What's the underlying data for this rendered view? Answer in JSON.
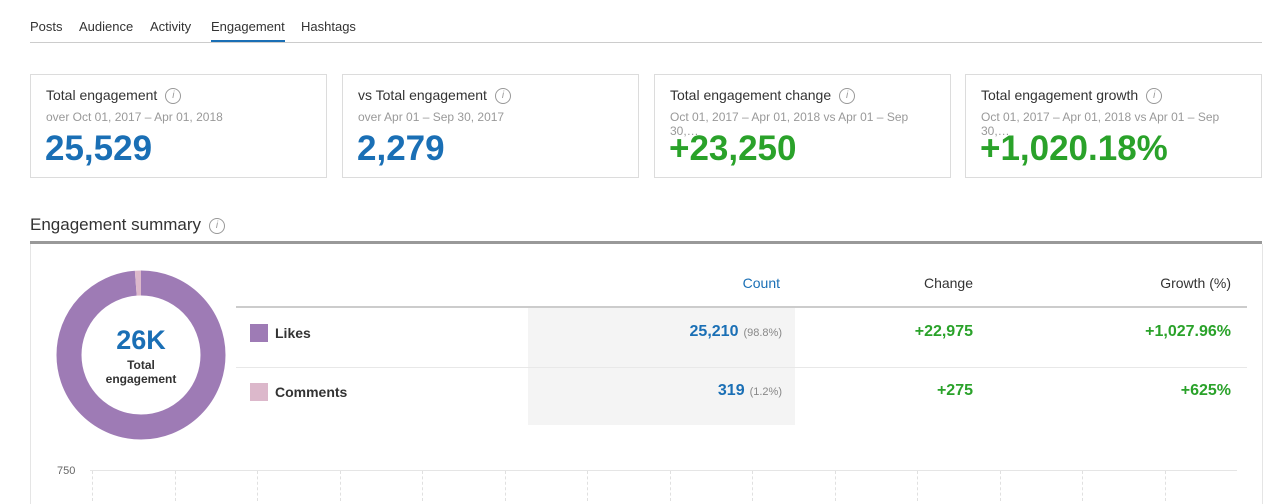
{
  "tabs": [
    "Posts",
    "Audience",
    "Activity",
    "Engagement",
    "Hashtags"
  ],
  "active_tab": 3,
  "cards": [
    {
      "title": "Total engagement",
      "subtitle": "over Oct 01, 2017 – Apr 01, 2018",
      "value": "25,529",
      "color": "#1a6fb5"
    },
    {
      "title": "vs Total engagement",
      "subtitle": "over Apr 01 – Sep 30, 2017",
      "value": "2,279",
      "color": "#1a6fb5"
    },
    {
      "title": "Total engagement change",
      "subtitle": "Oct 01, 2017 – Apr 01, 2018 vs Apr 01 – Sep 30,…",
      "value": "+23,250",
      "color": "#2aa22a"
    },
    {
      "title": "Total engagement growth",
      "subtitle": "Oct 01, 2017 – Apr 01, 2018 vs Apr 01 – Sep 30,…",
      "value": "+1,020.18%",
      "color": "#2aa22a"
    }
  ],
  "summary": {
    "title": "Engagement summary",
    "donut": {
      "value": "26K",
      "label": "Total engagement"
    },
    "headers": [
      "Count",
      "Change",
      "Growth (%)"
    ],
    "rows": [
      {
        "name": "Likes",
        "color": "#9e7bb5",
        "count": {
          "value": 25210,
          "label": "25,210"
        },
        "share": {
          "value": 98.8,
          "label": "(98.8%)"
        },
        "change": "+22,975",
        "growth": "+1,027.96%"
      },
      {
        "name": "Comments",
        "color": "#dcb8cb",
        "count": {
          "value": 319,
          "label": "319"
        },
        "share": {
          "value": 1.2,
          "label": "(1.2%)"
        },
        "change": "+275",
        "growth": "+625%"
      }
    ]
  },
  "chart_preview": {
    "yticks": [
      750
    ]
  }
}
